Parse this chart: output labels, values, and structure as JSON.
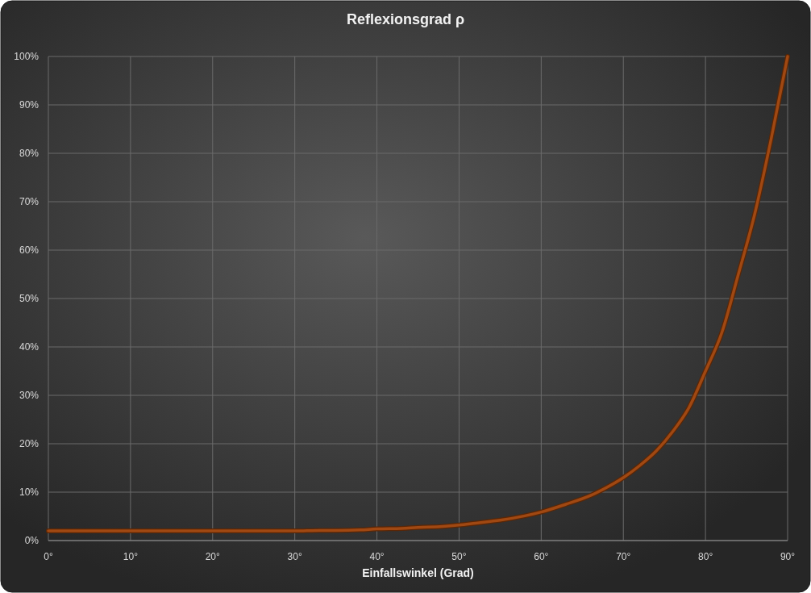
{
  "chart_data": {
    "type": "line",
    "title": "Reflexionsgrad  ρ",
    "xlabel": "Einfallswinkel (Grad)",
    "x": [
      0,
      5,
      10,
      15,
      20,
      25,
      30,
      33,
      35,
      38,
      40,
      43,
      45,
      48,
      50,
      52,
      55,
      58,
      60,
      63,
      66,
      68,
      70,
      72,
      74,
      76,
      78,
      80,
      82,
      84,
      86,
      88,
      90
    ],
    "series": [
      {
        "color": "#a04812",
        "values": [
          2,
          2,
          2,
          2,
          2,
          2,
          2,
          2.1,
          2.1,
          2.2,
          2.4,
          2.5,
          2.7,
          2.9,
          3.2,
          3.6,
          4.2,
          5.1,
          5.9,
          7.5,
          9.3,
          11,
          13,
          15.5,
          18.5,
          22.5,
          27.5,
          35,
          43,
          55,
          67.5,
          83,
          100
        ]
      }
    ],
    "xlim": [
      0,
      90
    ],
    "ylim": [
      0,
      100
    ],
    "xticks": [
      {
        "value": 0,
        "label": "0°"
      },
      {
        "value": 10,
        "label": "10°"
      },
      {
        "value": 20,
        "label": "20°"
      },
      {
        "value": 30,
        "label": "30°"
      },
      {
        "value": 40,
        "label": "40°"
      },
      {
        "value": 50,
        "label": "50°"
      },
      {
        "value": 60,
        "label": "60°"
      },
      {
        "value": 70,
        "label": "70°"
      },
      {
        "value": 80,
        "label": "80°"
      },
      {
        "value": 90,
        "label": "90°"
      }
    ],
    "yticks": [
      {
        "value": 0,
        "label": "0%"
      },
      {
        "value": 10,
        "label": "10%"
      },
      {
        "value": 20,
        "label": "20%"
      },
      {
        "value": 30,
        "label": "30%"
      },
      {
        "value": 40,
        "label": "40%"
      },
      {
        "value": 50,
        "label": "50%"
      },
      {
        "value": 60,
        "label": "60%"
      },
      {
        "value": 70,
        "label": "70%"
      },
      {
        "value": 80,
        "label": "80%"
      },
      {
        "value": 90,
        "label": "90%"
      },
      {
        "value": 100,
        "label": "100%"
      }
    ],
    "grid": true,
    "marker": "none",
    "line_style": "solid"
  }
}
